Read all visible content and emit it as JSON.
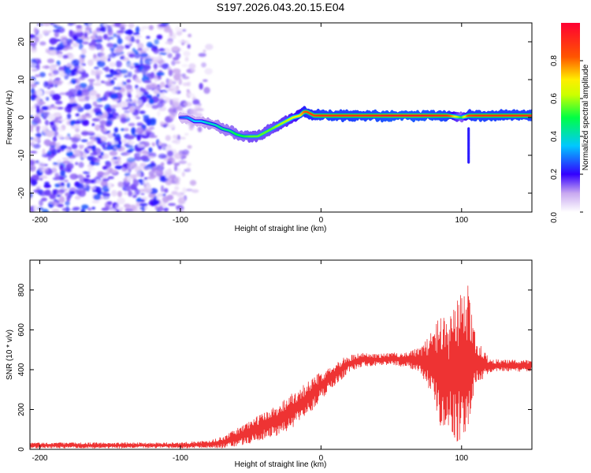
{
  "title": "S197.2026.043.20.15.E04",
  "chart_data": [
    {
      "type": "heatmap",
      "xlabel": "Height of straight line (km)",
      "ylabel": "Frequency (Hz)",
      "xlim": [
        -207,
        150
      ],
      "ylim": [
        -25,
        25
      ],
      "xticks": [
        -200,
        -100,
        0,
        100
      ],
      "yticks": [
        -20,
        -10,
        0,
        10,
        20
      ],
      "colorbar": {
        "label": "Normalized spectral amplitude",
        "range": [
          0.0,
          1.0
        ],
        "ticks": [
          "0.0",
          "0.2",
          "0.4",
          "0.6",
          "0.8"
        ],
        "tick_values": [
          0.0,
          0.2,
          0.4,
          0.6,
          0.8
        ]
      },
      "ridge": {
        "x": [
          -100,
          -95,
          -90,
          -85,
          -80,
          -75,
          -70,
          -65,
          -60,
          -55,
          -50,
          -45,
          -40,
          -35,
          -30,
          -25,
          -20,
          -15,
          -12,
          -10,
          -5,
          0,
          10,
          30,
          50,
          70,
          90,
          100,
          105,
          110,
          150
        ],
        "freq": [
          0,
          0,
          -1,
          -1,
          -1.5,
          -2,
          -3,
          -3.5,
          -4.5,
          -5,
          -5,
          -5,
          -4,
          -3,
          -2,
          -1,
          0,
          0.5,
          1.5,
          1.5,
          0.5,
          0.5,
          0.5,
          0.5,
          0.5,
          0.5,
          0.5,
          0,
          0.5,
          0.5,
          0.5
        ],
        "amplitude": [
          0.25,
          0.3,
          0.35,
          0.35,
          0.4,
          0.4,
          0.45,
          0.45,
          0.5,
          0.5,
          0.55,
          0.55,
          0.55,
          0.55,
          0.6,
          0.6,
          0.65,
          0.7,
          0.8,
          0.85,
          0.85,
          0.9,
          0.9,
          0.9,
          0.95,
          0.95,
          0.9,
          0.5,
          0.85,
          0.9,
          0.9
        ]
      },
      "noise_region": {
        "x_from": -207,
        "x_to": -100,
        "amplitude_max": 0.25
      },
      "spur": {
        "x": 105,
        "freq_from": -3,
        "freq_to": -12
      }
    },
    {
      "type": "line",
      "xlabel": "Height of straight line (km)",
      "ylabel": "SNR (10 * v/v)",
      "xlim": [
        -207,
        150
      ],
      "ylim": [
        0,
        950
      ],
      "xticks": [
        -200,
        -100,
        0,
        100
      ],
      "yticks": [
        0,
        200,
        400,
        600,
        800
      ],
      "color": "#ee3333",
      "series": [
        {
          "name": "SNR",
          "x": [
            -207,
            -150,
            -100,
            -80,
            -70,
            -60,
            -50,
            -40,
            -30,
            -20,
            -10,
            0,
            10,
            20,
            30,
            40,
            50,
            60,
            70,
            80,
            85,
            90,
            95,
            100,
            105,
            110,
            120,
            130,
            140,
            150
          ],
          "y": [
            20,
            20,
            20,
            25,
            35,
            60,
            90,
            120,
            150,
            200,
            250,
            320,
            380,
            430,
            450,
            450,
            455,
            450,
            450,
            430,
            400,
            380,
            380,
            400,
            430,
            440,
            420,
            420,
            420,
            420
          ],
          "spread": [
            15,
            15,
            15,
            20,
            30,
            45,
            60,
            70,
            80,
            90,
            90,
            70,
            60,
            45,
            35,
            30,
            30,
            40,
            60,
            180,
            300,
            250,
            350,
            420,
            400,
            120,
            35,
            30,
            30,
            30
          ]
        }
      ]
    }
  ]
}
